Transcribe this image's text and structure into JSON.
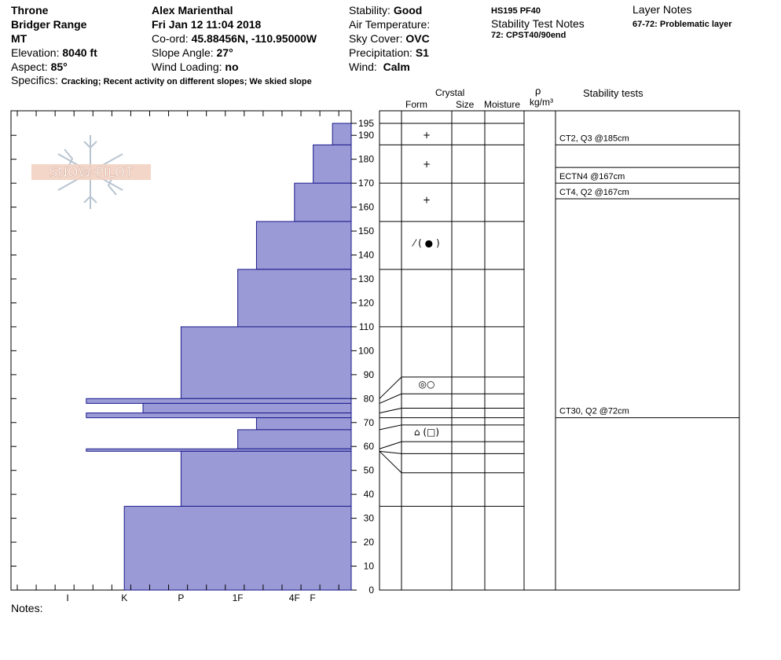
{
  "header": {
    "location_name": "Throne",
    "range": "Bridger Range",
    "state": "MT",
    "elevation_label": "Elevation:",
    "elevation_value": "8040 ft",
    "aspect_label": "Aspect:",
    "aspect_value": "85°",
    "observer": "Alex Marienthal",
    "datetime": "Fri Jan 12 11:04 2018",
    "coord_label": "Co-ord:",
    "coord_value": "45.88456N, -110.95000W",
    "slope_label": "Slope Angle:",
    "slope_value": "27°",
    "wind_loading_label": "Wind Loading:",
    "wind_loading_value": "no",
    "stability_label": "Stability:",
    "stability_value": "Good",
    "air_temp_label": "Air Temperature:",
    "sky_label": "Sky Cover:",
    "sky_value": "OVC",
    "precip_label": "Precipitation:",
    "precip_value": "S1",
    "wind_label": "Wind:",
    "wind_value": "Calm",
    "hs_pf": "HS195  PF40",
    "stability_notes_title": "Stability Test Notes",
    "stability_notes_line": "72: CPST40/90end",
    "layer_notes_title": "Layer Notes",
    "layer_notes_line": "67-72: Problematic layer",
    "specifics_label": "Specifics:",
    "specifics_value": "Cracking; Recent activity on different slopes; We skied slope"
  },
  "logo_text": "SNOW PILOT",
  "column_headers": {
    "crystal": "Crystal",
    "form": "Form",
    "size": "Size",
    "moisture": "Moisture",
    "rho": "ρ",
    "density_unit": "kg/m³",
    "stability_tests": "Stability tests"
  },
  "notes_label": "Notes:",
  "colors": {
    "fill": "#9a9ad6",
    "stroke": "#1a1a8c"
  },
  "chart_data": {
    "type": "bar",
    "orientation": "horizontal",
    "title": "",
    "ylabel": "",
    "ylim": [
      0,
      200
    ],
    "y_ticks": [
      0,
      10,
      20,
      30,
      40,
      50,
      60,
      70,
      80,
      90,
      100,
      110,
      120,
      130,
      140,
      150,
      160,
      170,
      180,
      190,
      195
    ],
    "hardness_scale": [
      "I",
      "K",
      "P",
      "1F",
      "4F",
      "F"
    ],
    "hardness_tick_values": [
      5,
      4,
      3,
      2,
      1,
      0
    ],
    "layers": [
      {
        "bottom": 186,
        "top": 195,
        "hardness": 0.33
      },
      {
        "bottom": 170,
        "top": 186,
        "hardness": 0.67
      },
      {
        "bottom": 154,
        "top": 170,
        "hardness": 1.0
      },
      {
        "bottom": 134,
        "top": 154,
        "hardness": 1.67
      },
      {
        "bottom": 110,
        "top": 134,
        "hardness": 2.0
      },
      {
        "bottom": 80,
        "top": 110,
        "hardness": 3.0
      },
      {
        "bottom": 78,
        "top": 80,
        "hardness": 4.67
      },
      {
        "bottom": 74,
        "top": 78,
        "hardness": 3.67
      },
      {
        "bottom": 72,
        "top": 74,
        "hardness": 4.67
      },
      {
        "bottom": 67,
        "top": 72,
        "hardness": 1.67
      },
      {
        "bottom": 59,
        "top": 67,
        "hardness": 2.0
      },
      {
        "bottom": 58,
        "top": 59,
        "hardness": 4.67
      },
      {
        "bottom": 35,
        "top": 58,
        "hardness": 3.0
      },
      {
        "bottom": 0,
        "top": 35,
        "hardness": 4.0
      }
    ],
    "layer_boundaries": [
      195,
      186,
      170,
      154,
      134,
      110,
      89,
      82,
      76,
      72,
      69,
      62,
      57,
      49,
      35
    ],
    "crystal_forms": [
      {
        "depth": 190,
        "symbol": "+"
      },
      {
        "depth": 178,
        "symbol": "+"
      },
      {
        "depth": 163,
        "symbol": "+"
      },
      {
        "depth": 145,
        "symbol": "⁄ ( ● )"
      },
      {
        "depth": 86,
        "symbol": "◎○"
      },
      {
        "depth": 66,
        "symbol": "⌂ (□)"
      }
    ],
    "stability_tests": [
      {
        "depth": 185,
        "text": "CT2, Q3 @185cm"
      },
      {
        "depth": 167,
        "text": "ECTN4 @167cm"
      },
      {
        "depth": 167,
        "text": "CT4, Q2 @167cm"
      },
      {
        "depth": 72,
        "text": "CT30, Q2 @72cm"
      }
    ]
  }
}
